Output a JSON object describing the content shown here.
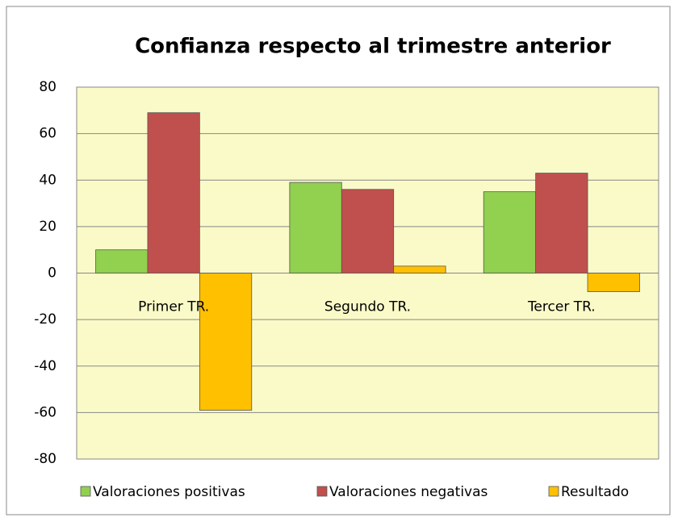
{
  "chart_data": {
    "type": "bar",
    "title": "Confianza respecto al trimestre anterior",
    "categories": [
      "Primer TR.",
      "Segundo TR.",
      "Tercer TR."
    ],
    "series": [
      {
        "name": "Valoraciones positivas",
        "color": "#92d050",
        "values": [
          10,
          39,
          35
        ]
      },
      {
        "name": "Valoraciones negativas",
        "color": "#c0504d",
        "values": [
          69,
          36,
          43
        ]
      },
      {
        "name": "Resultado",
        "color": "#ffc000",
        "values": [
          -59,
          3,
          -8
        ]
      }
    ],
    "ylim": [
      -80,
      80
    ],
    "yticks": [
      -80,
      -60,
      -40,
      -20,
      0,
      20,
      40,
      60,
      80
    ],
    "grid": true,
    "legend": "bottom"
  }
}
